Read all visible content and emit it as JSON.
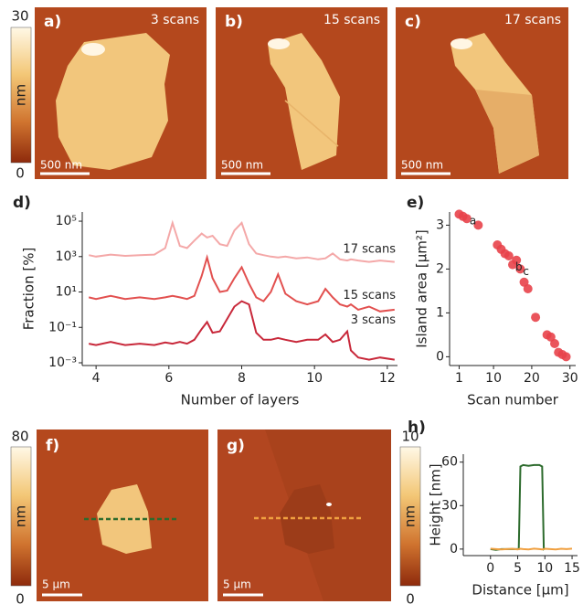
{
  "colorbars": [
    {
      "max": "30",
      "unit": "nm",
      "min": "0"
    },
    {
      "max": "80",
      "unit": "nm",
      "min": "0"
    },
    {
      "max": "10",
      "unit": "nm",
      "min": "0"
    }
  ],
  "images": [
    {
      "label": "a)",
      "caption": "3 scans",
      "scale_bar": "500 nm"
    },
    {
      "label": "b)",
      "caption": "15 scans",
      "scale_bar": "500 nm"
    },
    {
      "label": "c)",
      "caption": "17 scans",
      "scale_bar": "500 nm"
    },
    {
      "label": "f)",
      "scale_bar": "5 µm"
    },
    {
      "label": "g)",
      "scale_bar": "5 µm"
    }
  ],
  "chart_data": [
    {
      "type": "line",
      "panel_label": "d)",
      "xlabel": "Number of layers",
      "ylabel": "Fraction [%]",
      "log_y": true,
      "series_labels": "inline",
      "x": [
        3.8,
        4.0,
        4.4,
        4.8,
        5.2,
        5.6,
        5.9,
        6.1,
        6.3,
        6.5,
        6.7,
        6.9,
        7.05,
        7.2,
        7.4,
        7.6,
        7.8,
        8.0,
        8.2,
        8.4,
        8.6,
        8.8,
        9.0,
        9.2,
        9.5,
        9.8,
        10.1,
        10.3,
        10.5,
        10.7,
        10.9,
        11.0,
        11.2,
        11.5,
        11.8,
        12.2
      ],
      "series": [
        {
          "name": "3 scans",
          "color": "#c8283a",
          "values": [
            0.012,
            0.01,
            0.015,
            0.01,
            0.012,
            0.01,
            0.014,
            0.012,
            0.015,
            0.012,
            0.02,
            0.08,
            0.2,
            0.05,
            0.06,
            0.3,
            1.5,
            3,
            2,
            0.05,
            0.02,
            0.02,
            0.025,
            0.02,
            0.015,
            0.02,
            0.02,
            0.04,
            0.015,
            0.02,
            0.06,
            0.005,
            0.002,
            0.0015,
            0.002,
            0.0015
          ]
        },
        {
          "name": "15 scans",
          "color": "#e2504f",
          "values": [
            5,
            4,
            6,
            4,
            5,
            4,
            5,
            6,
            5,
            4,
            6,
            80,
            900,
            60,
            10,
            12,
            60,
            250,
            30,
            5,
            3,
            10,
            100,
            8,
            3,
            2,
            3,
            15,
            5,
            2,
            1.5,
            2,
            1,
            1.5,
            0.8,
            1
          ]
        },
        {
          "name": "17 scans",
          "color": "#f4a8a8",
          "values": [
            1200,
            1000,
            1300,
            1100,
            1200,
            1300,
            3000,
            80000,
            4000,
            3000,
            8000,
            20000,
            12000,
            15000,
            5000,
            4000,
            30000,
            80000,
            5000,
            1500,
            1200,
            1000,
            900,
            1000,
            800,
            900,
            700,
            800,
            1500,
            700,
            600,
            700,
            600,
            500,
            600,
            500
          ]
        }
      ],
      "xlim": [
        3.62,
        12.28
      ],
      "xticks": [
        4,
        6,
        8,
        10,
        12
      ],
      "ylim": [
        0.0007,
        330000
      ],
      "yticks": [
        {
          "value": 0.001,
          "label": "10⁻³"
        },
        {
          "value": 0.1,
          "label": "10⁻¹"
        },
        {
          "value": 10,
          "label": "10¹"
        },
        {
          "value": 1000,
          "label": "10³"
        },
        {
          "value": 100000,
          "label": "10⁵"
        }
      ]
    },
    {
      "type": "scatter",
      "panel_label": "e)",
      "xlabel": "Scan number",
      "ylabel": "Island area [µm²]",
      "color": "#e8424a",
      "x": [
        1,
        2,
        3,
        6,
        11,
        12,
        13,
        14,
        15,
        16,
        17,
        18,
        19,
        21,
        24,
        25,
        26,
        27,
        28,
        29
      ],
      "y": [
        3.25,
        3.2,
        3.15,
        3.0,
        2.55,
        2.45,
        2.35,
        2.3,
        2.1,
        2.2,
        2.0,
        1.7,
        1.55,
        0.9,
        0.5,
        0.45,
        0.3,
        0.1,
        0.05,
        0.0
      ],
      "point_labels": [
        null,
        null,
        "a",
        null,
        null,
        null,
        null,
        null,
        "b",
        null,
        "c",
        null,
        null,
        null,
        null,
        null,
        null,
        null,
        null,
        null
      ],
      "xlim": [
        -1.5,
        31.5
      ],
      "xticks": [
        1,
        10,
        20,
        30
      ],
      "ylim": [
        -0.2,
        3.3
      ],
      "yticks": [
        0,
        1,
        2,
        3
      ]
    },
    {
      "type": "line",
      "panel_label": "h)",
      "xlabel": "Distance [µm]",
      "ylabel": "Height [nm]",
      "x": [
        0,
        1,
        2,
        3,
        4,
        5,
        5.2,
        5.5,
        6,
        7,
        8,
        9,
        9.5,
        9.8,
        10,
        11,
        12,
        13,
        14,
        15
      ],
      "series": [
        {
          "color": "#2d6b2d",
          "values": [
            0,
            -0.5,
            0,
            0,
            0,
            0,
            0,
            57,
            58,
            57.5,
            58,
            58,
            57,
            0,
            0.5,
            null,
            null,
            null,
            null,
            null
          ]
        },
        {
          "color": "#f0a040",
          "values": [
            0.3,
            0,
            -0.3,
            0,
            0.2,
            -0.2,
            0,
            0.2,
            0,
            -0.2,
            0.3,
            0,
            -0.2,
            0,
            0.2,
            0,
            -0.3,
            0.2,
            0,
            0.3
          ]
        }
      ],
      "xlim": [
        -5,
        16
      ],
      "xticks": [
        0,
        5,
        10,
        15
      ],
      "ylim": [
        -4.5,
        65.5
      ],
      "yticks": [
        0,
        30,
        60
      ]
    }
  ]
}
